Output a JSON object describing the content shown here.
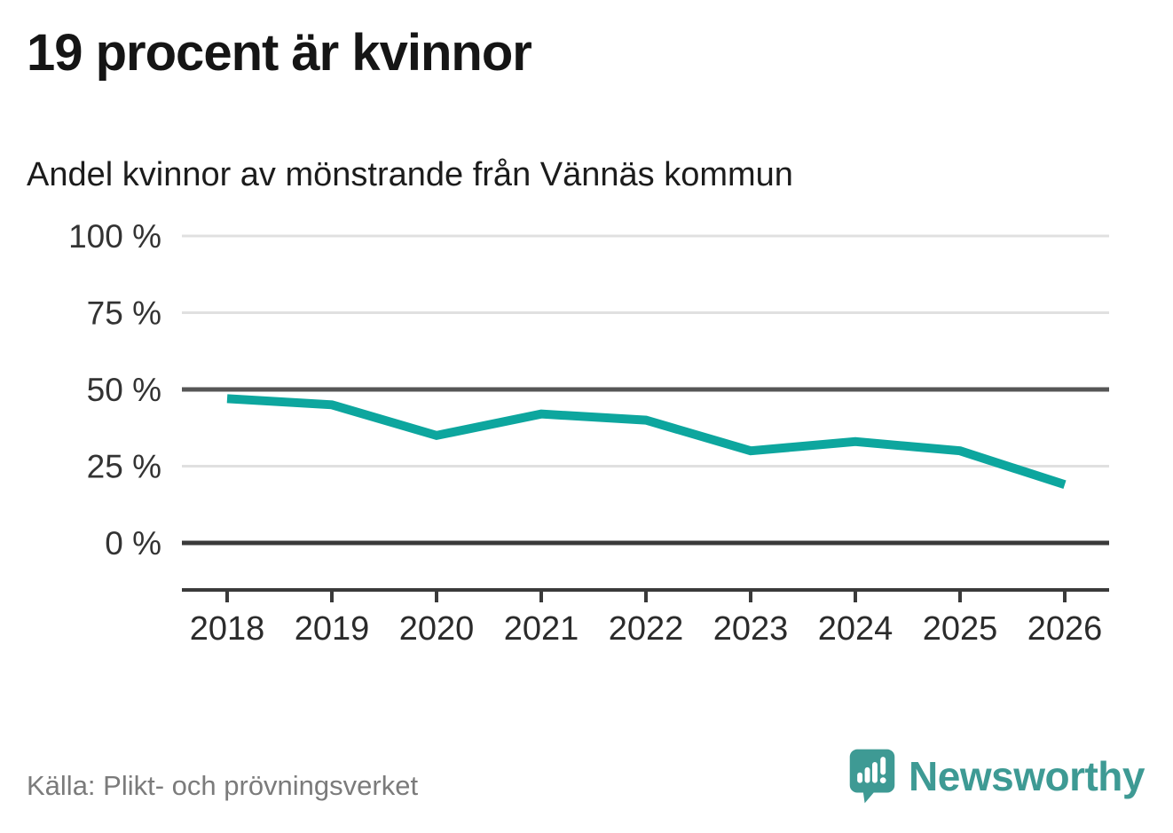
{
  "header": {
    "title": "19 procent är kvinnor",
    "subtitle": "Andel kvinnor av mönstrande från Vännäs kommun"
  },
  "footer": {
    "source": "Källa: Plikt- och prövningsverket",
    "brand": "Newsworthy"
  },
  "colors": {
    "line": "#0da69e",
    "brand_teal": "#3e9a94",
    "grid_light": "#e0e0e0",
    "grid_mid": "#565656",
    "axis_dark": "#3a3a3a",
    "tick_text": "#333333",
    "year_text": "#2b2b2b"
  },
  "chart_data": {
    "type": "line",
    "title": "19 procent är kvinnor",
    "subtitle": "Andel kvinnor av mönstrande från Vännäs kommun",
    "x": [
      2018,
      2019,
      2020,
      2021,
      2022,
      2023,
      2024,
      2025,
      2026
    ],
    "series": [
      {
        "name": "Andel kvinnor av mönstrande",
        "values": [
          47,
          45,
          35,
          42,
          40,
          30,
          33,
          30,
          19
        ]
      }
    ],
    "unit": "%",
    "ylim": [
      0,
      100
    ],
    "yticks": [
      0,
      25,
      50,
      75,
      100
    ],
    "ytick_format": "{v} %",
    "grid": "horizontal",
    "emphasized_gridlines": [
      0,
      50
    ],
    "legend": "none",
    "source": "Källa: Plikt- och prövningsverket"
  }
}
